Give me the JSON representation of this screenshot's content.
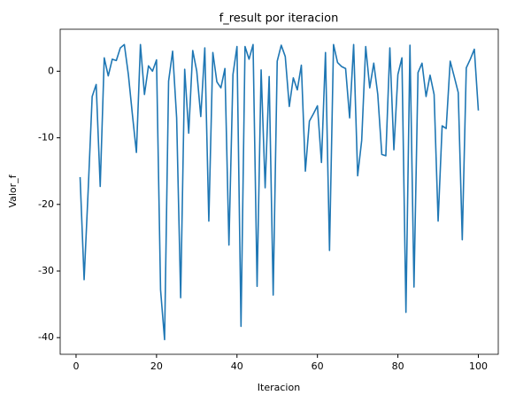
{
  "chart_data": {
    "type": "line",
    "title": "f_result por iteracion",
    "xlabel": "Iteracion",
    "ylabel": "Valor_f",
    "x": [
      1,
      2,
      3,
      4,
      5,
      6,
      7,
      8,
      9,
      10,
      11,
      12,
      13,
      14,
      15,
      16,
      17,
      18,
      19,
      20,
      21,
      22,
      23,
      24,
      25,
      26,
      27,
      28,
      29,
      30,
      31,
      32,
      33,
      34,
      35,
      36,
      37,
      38,
      39,
      40,
      41,
      42,
      43,
      44,
      45,
      46,
      47,
      48,
      49,
      50,
      51,
      52,
      53,
      54,
      55,
      56,
      57,
      58,
      59,
      60,
      61,
      62,
      63,
      64,
      65,
      66,
      67,
      68,
      69,
      70,
      71,
      72,
      73,
      74,
      75,
      76,
      77,
      78,
      79,
      80,
      81,
      82,
      83,
      84,
      85,
      86,
      87,
      88,
      89,
      90,
      91,
      92,
      93,
      94,
      95,
      96,
      97,
      98,
      99,
      100
    ],
    "series": [
      {
        "name": "f_result",
        "color": "#1f77b4",
        "values": [
          -15.9,
          -31.3,
          -18,
          -3.8,
          -2,
          -17.3,
          2,
          -0.7,
          1.8,
          1.6,
          3.5,
          4,
          -0.5,
          -6.5,
          -12.2,
          4,
          -3.5,
          0.8,
          0,
          1.7,
          -32.8,
          -40.3,
          -1.5,
          3,
          -7,
          -34,
          0.3,
          -9.3,
          3.1,
          0,
          -6.8,
          3.5,
          -22.5,
          2.8,
          -1.6,
          -2.5,
          0.4,
          -26.1,
          -0.5,
          3.7,
          -38.3,
          3.7,
          1.8,
          4,
          -32.3,
          0.2,
          -17.5,
          -0.8,
          -33.6,
          1.5,
          3.9,
          2.2,
          -5.3,
          -1,
          -2.8,
          0.9,
          -15,
          -7.5,
          -6.4,
          -5.2,
          -13.7,
          2.8,
          -26.9,
          4,
          1.3,
          0.7,
          0.4,
          -7,
          4,
          -15.7,
          -10.4,
          3.7,
          -2.5,
          1.2,
          -3.5,
          -12.5,
          -12.7,
          3.5,
          -11.8,
          -0.5,
          2,
          -36.2,
          3.9,
          -32.4,
          -0.2,
          1.2,
          -3.8,
          -0.6,
          -3.5,
          -22.5,
          -8.2,
          -8.6,
          1.5,
          -0.8,
          -3.2,
          -25.3,
          0.5,
          1.8,
          3.3,
          -5.9
        ]
      }
    ],
    "xlim": [
      -3.95,
      104.95
    ],
    "xticks": [
      0,
      20,
      40,
      60,
      80,
      100
    ],
    "ylim": [
      -42.5,
      6.3
    ],
    "yticks": [
      -40,
      -30,
      -20,
      -10,
      0
    ]
  }
}
